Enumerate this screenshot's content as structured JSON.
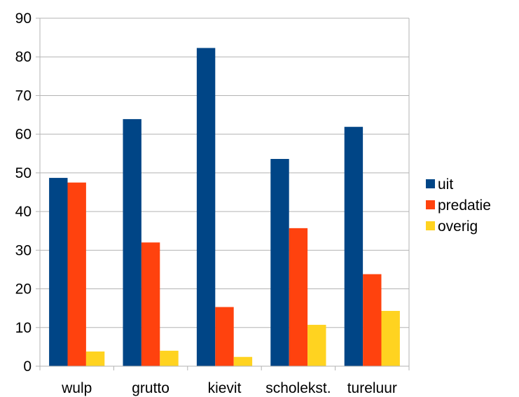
{
  "chart_data": {
    "type": "bar",
    "categories": [
      "wulp",
      "grutto",
      "kievit",
      "scholekst.",
      "tureluur"
    ],
    "series": [
      {
        "name": "uit",
        "color": "#004586",
        "values": [
          48.7,
          63.9,
          82.3,
          53.6,
          61.9
        ]
      },
      {
        "name": "predatie",
        "color": "#ff420e",
        "values": [
          47.5,
          32.0,
          15.3,
          35.7,
          23.8
        ]
      },
      {
        "name": "overig",
        "color": "#ffd320",
        "values": [
          3.8,
          4.0,
          2.4,
          10.7,
          14.3
        ]
      }
    ],
    "ylim": [
      0,
      90
    ],
    "yticks": [
      0,
      10,
      20,
      30,
      40,
      50,
      60,
      70,
      80,
      90
    ],
    "grid": true,
    "legend_position": "right",
    "title": "",
    "xlabel": "",
    "ylabel": ""
  }
}
